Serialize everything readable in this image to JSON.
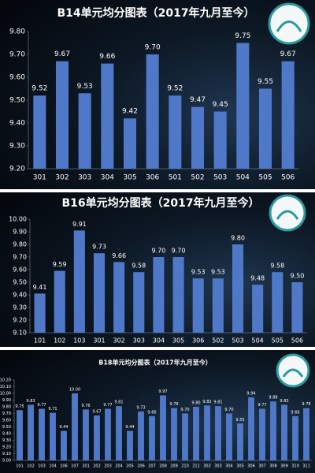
{
  "chart_data": [
    {
      "type": "bar",
      "title": "B14单元均分图表（2017年九月至今）",
      "categories": [
        "301",
        "302",
        "303",
        "304",
        "305",
        "306",
        "501",
        "502",
        "503",
        "504",
        "505",
        "506"
      ],
      "values": [
        9.52,
        9.67,
        9.53,
        9.66,
        9.42,
        9.7,
        9.52,
        9.47,
        9.45,
        9.75,
        9.55,
        9.67
      ],
      "value_labels": [
        "9.52",
        "9.67",
        "9.53",
        "9.66",
        "9.42",
        "9.70",
        "9.52",
        "9.47",
        "9.45",
        "9.75",
        "9.55",
        "9.67"
      ],
      "color": "#4f78c8",
      "ylim": [
        9.2,
        9.8
      ],
      "yticks": [
        {
          "value": 9.2,
          "label": "9.20"
        },
        {
          "value": 9.3,
          "label": "9.30"
        },
        {
          "value": 9.4,
          "label": "9.40"
        },
        {
          "value": 9.5,
          "label": "9.50"
        },
        {
          "value": 9.6,
          "label": "9.60"
        },
        {
          "value": 9.7,
          "label": "9.70"
        },
        {
          "value": 9.8,
          "label": "9.80"
        }
      ],
      "grid": false
    },
    {
      "type": "bar",
      "title": "B16单元均分图表（2017年九月至今）",
      "categories": [
        "101",
        "102",
        "103",
        "301",
        "302",
        "303",
        "304",
        "305",
        "306",
        "502",
        "503",
        "504",
        "505",
        "506"
      ],
      "values": [
        9.41,
        9.59,
        9.91,
        9.73,
        9.66,
        9.58,
        9.7,
        9.7,
        9.53,
        9.53,
        9.8,
        9.48,
        9.58,
        9.5
      ],
      "value_labels": [
        "9.41",
        "9.59",
        "9.91",
        "9.73",
        "9.66",
        "9.58",
        "9.70",
        "9.70",
        "9.53",
        "9.53",
        "9.80",
        "9.48",
        "9.58",
        "9.50"
      ],
      "color": "#4f78c8",
      "ylim": [
        9.1,
        10.0
      ],
      "yticks": [
        {
          "value": 9.1,
          "label": "9.10"
        },
        {
          "value": 9.2,
          "label": "9.20"
        },
        {
          "value": 9.3,
          "label": "9.30"
        },
        {
          "value": 9.4,
          "label": "9.40"
        },
        {
          "value": 9.5,
          "label": "9.50"
        },
        {
          "value": 9.6,
          "label": "9.60"
        },
        {
          "value": 9.7,
          "label": "9.70"
        },
        {
          "value": 9.8,
          "label": "9.80"
        },
        {
          "value": 9.9,
          "label": "9.90"
        },
        {
          "value": 10.0,
          "label": "10.00"
        }
      ],
      "grid": false
    },
    {
      "type": "bar",
      "title": "B18单元均分图表（2017年九月至今）",
      "categories": [
        "101",
        "102",
        "103",
        "104",
        "106",
        "107",
        "201",
        "202",
        "203",
        "204",
        "205",
        "206",
        "207",
        "208",
        "209",
        "210",
        "211",
        "302",
        "303",
        "304",
        "305",
        "306",
        "307",
        "308",
        "309",
        "310",
        "311"
      ],
      "values": [
        9.75,
        9.83,
        9.77,
        9.71,
        9.44,
        10.0,
        9.76,
        9.67,
        9.77,
        9.81,
        9.44,
        9.73,
        9.66,
        9.97,
        9.78,
        9.7,
        9.8,
        9.82,
        9.81,
        9.7,
        9.55,
        9.94,
        9.77,
        9.88,
        9.83,
        9.66,
        9.78
      ],
      "value_labels": [
        "9.75",
        "9.83",
        "9.77",
        "9.71",
        "9.44",
        "10.00",
        "9.76",
        "9.67",
        "9.77",
        "9.81",
        "9.44",
        "9.73",
        "9.66",
        "9.97",
        "9.78",
        "9.70",
        "9.80",
        "9.82",
        "9.81",
        "9.70",
        "9.55",
        "9.94",
        "9.77",
        "9.88",
        "9.83",
        "9.66",
        "9.78"
      ],
      "color": "#4f78c8",
      "ylim": [
        9.0,
        10.2
      ],
      "yticks": [
        {
          "value": 9.0,
          "label": "9.00"
        },
        {
          "value": 9.1,
          "label": "9.10"
        },
        {
          "value": 9.2,
          "label": "9.20"
        },
        {
          "value": 9.3,
          "label": "9.30"
        },
        {
          "value": 9.4,
          "label": "9.40"
        },
        {
          "value": 9.5,
          "label": "9.50"
        },
        {
          "value": 9.6,
          "label": "9.60"
        },
        {
          "value": 9.7,
          "label": "9.70"
        },
        {
          "value": 9.8,
          "label": "9.80"
        },
        {
          "value": 9.9,
          "label": "9.90"
        },
        {
          "value": 10.0,
          "label": "10.00"
        },
        {
          "value": 10.1,
          "label": "10.10"
        },
        {
          "value": 10.2,
          "label": "10.20"
        }
      ],
      "grid": false
    }
  ]
}
